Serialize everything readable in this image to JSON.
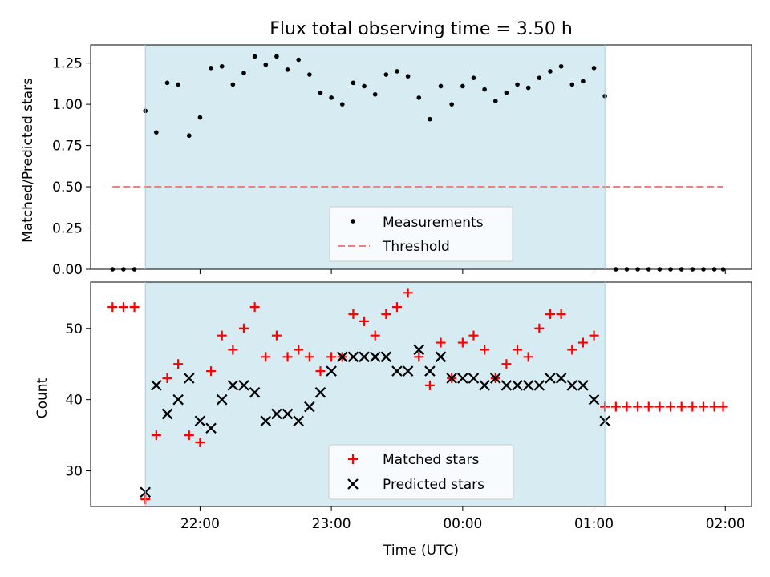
{
  "title": "Flux total observing time = 3.50 h",
  "chart_data": [
    {
      "type": "scatter",
      "panel": "top",
      "ylabel": "Matched/Predicted stars",
      "ylim": [
        0,
        1.36
      ],
      "yticks": [
        "0.00",
        "0.25",
        "0.50",
        "0.75",
        "1.00",
        "1.25"
      ],
      "ytick_values": [
        0,
        0.25,
        0.5,
        0.75,
        1.0,
        1.25
      ],
      "shaded_interval": [
        "21:35",
        "01:05"
      ],
      "threshold": {
        "value": 0.5,
        "x_range": [
          "21:20",
          "01:59"
        ],
        "color": "#f08080"
      },
      "legend": {
        "placement": "lower-center",
        "entries": [
          "Measurements",
          "Threshold"
        ]
      },
      "series": [
        {
          "name": "Measurements",
          "color": "#000000",
          "marker": "dot",
          "x": [
            "21:20",
            "21:25",
            "21:30",
            "21:35",
            "21:40",
            "21:45",
            "21:50",
            "21:55",
            "22:00",
            "22:05",
            "22:10",
            "22:15",
            "22:20",
            "22:25",
            "22:30",
            "22:35",
            "22:40",
            "22:45",
            "22:50",
            "22:55",
            "23:00",
            "23:05",
            "23:10",
            "23:15",
            "23:20",
            "23:25",
            "23:30",
            "23:35",
            "23:40",
            "23:45",
            "23:50",
            "23:55",
            "00:00",
            "00:05",
            "00:10",
            "00:15",
            "00:20",
            "00:25",
            "00:30",
            "00:35",
            "00:40",
            "00:45",
            "00:50",
            "00:55",
            "01:00",
            "01:05",
            "01:10",
            "01:15",
            "01:20",
            "01:25",
            "01:30",
            "01:35",
            "01:40",
            "01:45",
            "01:50",
            "01:55",
            "01:59"
          ],
          "y": [
            0,
            0,
            0,
            0.96,
            0.83,
            1.13,
            1.12,
            0.81,
            0.92,
            1.22,
            1.23,
            1.12,
            1.19,
            1.29,
            1.24,
            1.29,
            1.21,
            1.27,
            1.18,
            1.07,
            1.04,
            1.0,
            1.13,
            1.11,
            1.06,
            1.18,
            1.2,
            1.17,
            1.04,
            0.91,
            1.11,
            1.0,
            1.11,
            1.16,
            1.09,
            1.02,
            1.07,
            1.12,
            1.1,
            1.16,
            1.2,
            1.23,
            1.12,
            1.14,
            1.22,
            1.05,
            0,
            0,
            0,
            0,
            0,
            0,
            0,
            0,
            0,
            0,
            0
          ]
        }
      ]
    },
    {
      "type": "scatter",
      "panel": "bottom",
      "ylabel": "Count",
      "xlabel": "Time (UTC)",
      "ylim": [
        25,
        56.5
      ],
      "yticks": [
        "30",
        "40",
        "50"
      ],
      "ytick_values": [
        30,
        40,
        50
      ],
      "xlim": [
        "21:10",
        "02:12"
      ],
      "xticks": [
        "22:00",
        "23:00",
        "00:00",
        "01:00",
        "02:00"
      ],
      "shaded_interval": [
        "21:35",
        "01:05"
      ],
      "legend": {
        "placement": "lower-center",
        "entries": [
          "Matched stars",
          "Predicted stars"
        ]
      },
      "series": [
        {
          "name": "Matched stars",
          "color": "#ff0000",
          "marker": "plus",
          "x": [
            "21:20",
            "21:25",
            "21:30",
            "21:35",
            "21:40",
            "21:45",
            "21:50",
            "21:55",
            "22:00",
            "22:05",
            "22:10",
            "22:15",
            "22:20",
            "22:25",
            "22:30",
            "22:35",
            "22:40",
            "22:45",
            "22:50",
            "22:55",
            "23:00",
            "23:05",
            "23:10",
            "23:15",
            "23:20",
            "23:25",
            "23:30",
            "23:35",
            "23:40",
            "23:45",
            "23:50",
            "23:55",
            "00:00",
            "00:05",
            "00:10",
            "00:15",
            "00:20",
            "00:25",
            "00:30",
            "00:35",
            "00:40",
            "00:45",
            "00:50",
            "00:55",
            "01:00",
            "01:05",
            "01:10",
            "01:15",
            "01:20",
            "01:25",
            "01:30",
            "01:35",
            "01:40",
            "01:45",
            "01:50",
            "01:55",
            "01:59"
          ],
          "y": [
            53,
            53,
            53,
            26,
            35,
            43,
            45,
            35,
            34,
            44,
            49,
            47,
            50,
            53,
            46,
            49,
            46,
            47,
            46,
            44,
            46,
            46,
            52,
            51,
            49,
            52,
            53,
            55,
            46,
            42,
            48,
            43,
            48,
            49,
            47,
            43,
            45,
            47,
            46,
            50,
            52,
            52,
            47,
            48,
            49,
            39,
            39,
            39,
            39,
            39,
            39,
            39,
            39,
            39,
            39,
            39,
            39
          ]
        },
        {
          "name": "Predicted stars",
          "color": "#000000",
          "marker": "x",
          "x": [
            "21:35",
            "21:40",
            "21:45",
            "21:50",
            "21:55",
            "22:00",
            "22:05",
            "22:10",
            "22:15",
            "22:20",
            "22:25",
            "22:30",
            "22:35",
            "22:40",
            "22:45",
            "22:50",
            "22:55",
            "23:00",
            "23:05",
            "23:10",
            "23:15",
            "23:20",
            "23:25",
            "23:30",
            "23:35",
            "23:40",
            "23:45",
            "23:50",
            "23:55",
            "00:00",
            "00:05",
            "00:10",
            "00:15",
            "00:20",
            "00:25",
            "00:30",
            "00:35",
            "00:40",
            "00:45",
            "00:50",
            "00:55",
            "01:00",
            "01:05"
          ],
          "y": [
            27,
            42,
            38,
            40,
            43,
            37,
            36,
            40,
            42,
            42,
            41,
            37,
            38,
            38,
            37,
            39,
            41,
            44,
            46,
            46,
            46,
            46,
            46,
            44,
            44,
            47,
            44,
            46,
            43,
            43,
            43,
            42,
            43,
            42,
            42,
            42,
            42,
            43,
            43,
            42,
            42,
            40,
            37
          ]
        }
      ]
    }
  ]
}
